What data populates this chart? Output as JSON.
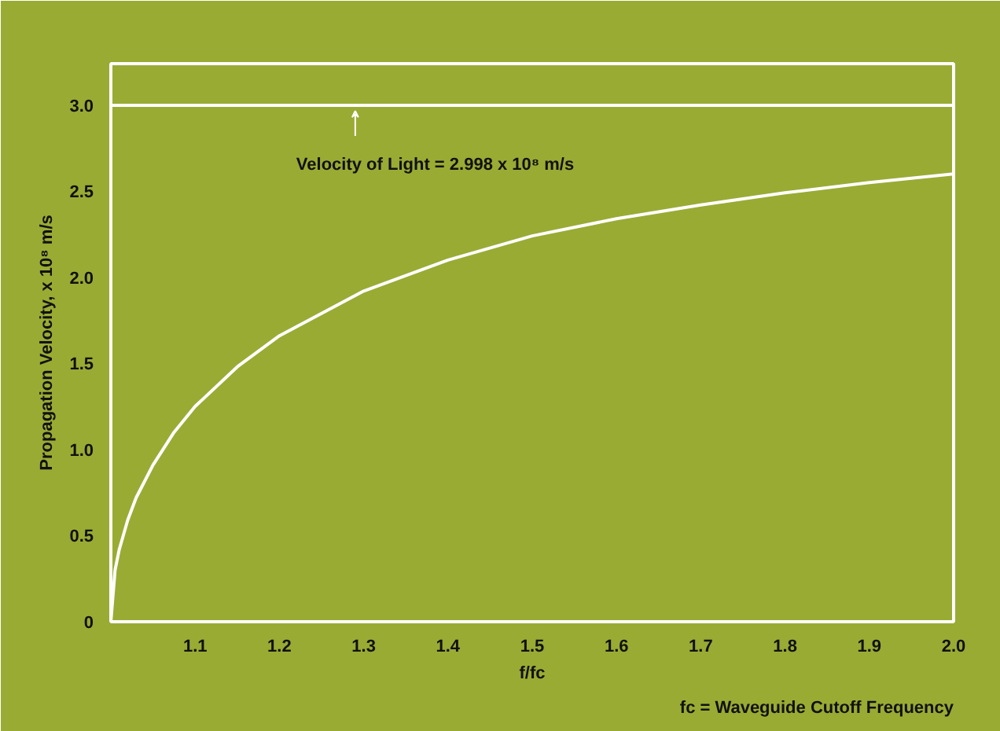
{
  "chart_data": {
    "type": "line",
    "xlabel": "f/fc",
    "ylabel": "Propagation Velocity, x 10⁸ m/s",
    "x": [
      1.0,
      1.005,
      1.01,
      1.02,
      1.03,
      1.05,
      1.075,
      1.1,
      1.15,
      1.2,
      1.3,
      1.4,
      1.5,
      1.6,
      1.7,
      1.8,
      1.9,
      2.0
    ],
    "series": [
      {
        "color": "#ffffff",
        "values": [
          0,
          0.3,
          0.42,
          0.59,
          0.72,
          0.91,
          1.1,
          1.25,
          1.48,
          1.66,
          1.92,
          2.1,
          2.24,
          2.34,
          2.42,
          2.49,
          2.55,
          2.6
        ]
      }
    ],
    "xlim": [
      1.0,
      2.0
    ],
    "ylim": [
      0,
      3.24
    ],
    "xticks": [
      1.1,
      1.2,
      1.3,
      1.4,
      1.5,
      1.6,
      1.7,
      1.8,
      1.9,
      {
        "value": 2.0,
        "label": "2.0"
      }
    ],
    "yticks": [
      0,
      {
        "value": 0.5,
        "label": "0.5"
      },
      {
        "value": 1.0,
        "label": "1.0"
      },
      {
        "value": 1.5,
        "label": "1.5"
      },
      {
        "value": 2.0,
        "label": "2.0"
      },
      {
        "value": 2.5,
        "label": "2.5"
      },
      {
        "value": 3.0,
        "label": "3.0"
      }
    ],
    "ref_lines": [
      {
        "axis": "y",
        "value": 2.998,
        "color": "#ffffff"
      }
    ],
    "annotations": [
      {
        "text": "Velocity of Light = 2.998 x 10⁸ m/s",
        "x": 1.29,
        "y": 2.998
      },
      "fc = Waveguide Cutoff Frequency"
    ],
    "grid": false,
    "marker": "none",
    "line_style": "solid"
  }
}
